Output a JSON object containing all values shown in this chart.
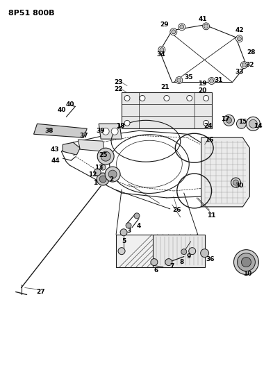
{
  "title": "8P51 800B",
  "bg": "#ffffff",
  "lc": "#1a1a1a",
  "figsize": [
    3.93,
    5.33
  ],
  "dpi": 100
}
